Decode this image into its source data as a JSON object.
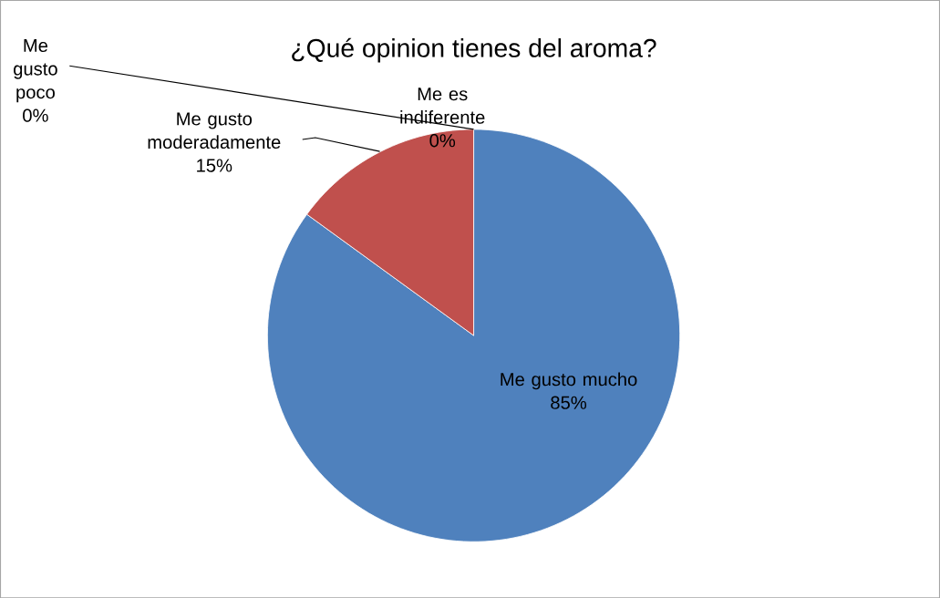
{
  "chart_data": {
    "type": "pie",
    "title": "¿Qué opinion tienes del aroma?",
    "categories": [
      "Me gusto mucho",
      "Me gusto moderadamente",
      "Me gusto poco",
      "Me es indiferente"
    ],
    "values": [
      85,
      15,
      0,
      0
    ],
    "value_labels": [
      "85%",
      "15%",
      "0%",
      "0%"
    ],
    "colors": [
      "#4f81bd",
      "#c0504d",
      "#9bbb59",
      "#8064a2"
    ]
  }
}
